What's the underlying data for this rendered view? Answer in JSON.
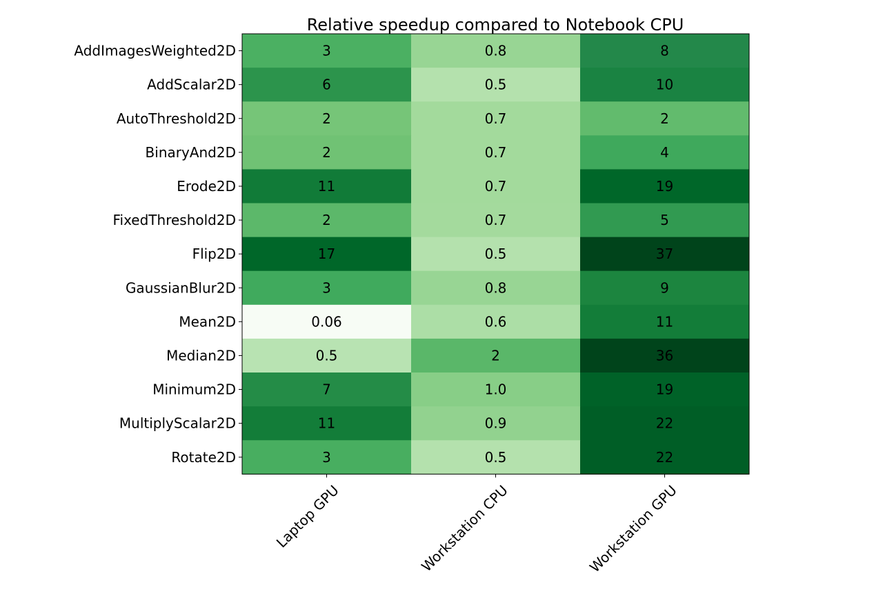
{
  "chart_data": {
    "type": "heatmap",
    "title": "Relative speedup compared to Notebook CPU",
    "xlabel": "",
    "ylabel": "",
    "colormap": "Greens",
    "grid": false,
    "rows": [
      "AddImagesWeighted2D",
      "AddScalar2D",
      "AutoThreshold2D",
      "BinaryAnd2D",
      "Erode2D",
      "FixedThreshold2D",
      "Flip2D",
      "GaussianBlur2D",
      "Mean2D",
      "Median2D",
      "Minimum2D",
      "MultiplyScalar2D",
      "Rotate2D"
    ],
    "columns": [
      "Laptop GPU",
      "Workstation CPU",
      "Workstation GPU"
    ],
    "labels": [
      [
        "3",
        "0.8",
        "8"
      ],
      [
        "6",
        "0.5",
        "10"
      ],
      [
        "2",
        "0.7",
        "2"
      ],
      [
        "2",
        "0.7",
        "4"
      ],
      [
        "11",
        "0.7",
        "19"
      ],
      [
        "2",
        "0.7",
        "5"
      ],
      [
        "17",
        "0.5",
        "37"
      ],
      [
        "3",
        "0.8",
        "9"
      ],
      [
        "0.06",
        "0.6",
        "11"
      ],
      [
        "0.5",
        "2",
        "36"
      ],
      [
        "7",
        "1.0",
        "19"
      ],
      [
        "11",
        "0.9",
        "22"
      ],
      [
        "3",
        "0.5",
        "22"
      ]
    ],
    "colors": [
      [
        "#4bb062",
        "#98d594",
        "#23884a"
      ],
      [
        "#2c944c",
        "#b4e1ad",
        "#1a8342"
      ],
      [
        "#76c578",
        "#a3da9c",
        "#62bb6d"
      ],
      [
        "#70c274",
        "#a3da9c",
        "#3fa95c"
      ],
      [
        "#117b38",
        "#a3da9c",
        "#006729"
      ],
      [
        "#5cb86a",
        "#a4da9d",
        "#319a51"
      ],
      [
        "#006729",
        "#b4e1ad",
        "#00441b"
      ],
      [
        "#40aa5d",
        "#98d594",
        "#1c853f"
      ],
      [
        "#f7fcf5",
        "#acdea6",
        "#137d39"
      ],
      [
        "#b8e3b2",
        "#5ab769",
        "#00441b"
      ],
      [
        "#248c47",
        "#88ce87",
        "#006228"
      ],
      [
        "#137d39",
        "#92d28f",
        "#005e26"
      ],
      [
        "#48ae60",
        "#b4e1ad",
        "#005e26"
      ]
    ],
    "dark_text_threshold": "white text on darkest cells"
  }
}
